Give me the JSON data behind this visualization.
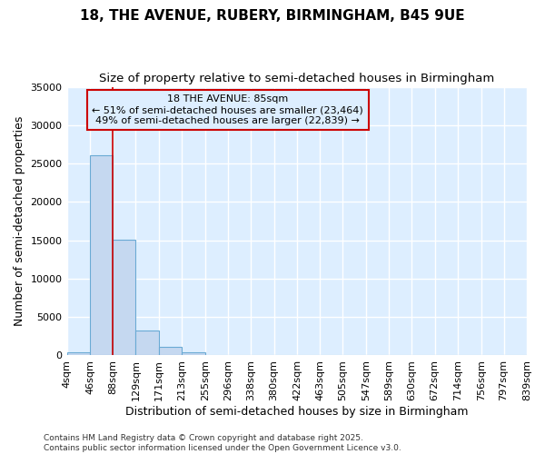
{
  "title": "18, THE AVENUE, RUBERY, BIRMINGHAM, B45 9UE",
  "subtitle": "Size of property relative to semi-detached houses in Birmingham",
  "xlabel": "Distribution of semi-detached houses by size in Birmingham",
  "ylabel": "Number of semi-detached properties",
  "bar_values": [
    400,
    26100,
    15100,
    3300,
    1100,
    400,
    80,
    30,
    10,
    5,
    2,
    1,
    1,
    0,
    0,
    0,
    0,
    0,
    0,
    0
  ],
  "bin_edges": [
    4,
    46,
    88,
    129,
    171,
    213,
    255,
    296,
    338,
    380,
    422,
    463,
    505,
    547,
    589,
    630,
    672,
    714,
    756,
    797,
    839
  ],
  "tick_labels": [
    "4sqm",
    "46sqm",
    "88sqm",
    "129sqm",
    "171sqm",
    "213sqm",
    "255sqm",
    "296sqm",
    "338sqm",
    "380sqm",
    "422sqm",
    "463sqm",
    "505sqm",
    "547sqm",
    "589sqm",
    "630sqm",
    "672sqm",
    "714sqm",
    "756sqm",
    "797sqm",
    "839sqm"
  ],
  "bar_color": "#c5d8f0",
  "bar_edge_color": "#6aaad4",
  "vline_x": 88,
  "vline_color": "#cc0000",
  "annotation_title": "18 THE AVENUE: 85sqm",
  "annotation_line2": "← 51% of semi-detached houses are smaller (23,464)",
  "annotation_line3": "49% of semi-detached houses are larger (22,839) →",
  "annotation_box_color": "#cc0000",
  "ylim": [
    0,
    35000
  ],
  "yticks": [
    0,
    5000,
    10000,
    15000,
    20000,
    25000,
    30000,
    35000
  ],
  "ytick_labels": [
    "0",
    "5000",
    "10000",
    "15000",
    "20000",
    "25000",
    "30000",
    "35000"
  ],
  "plot_bg_color": "#ddeeff",
  "figure_bg_color": "#ffffff",
  "grid_color": "#ffffff",
  "footer_line1": "Contains HM Land Registry data © Crown copyright and database right 2025.",
  "footer_line2": "Contains public sector information licensed under the Open Government Licence v3.0.",
  "title_fontsize": 11,
  "subtitle_fontsize": 9.5,
  "axis_label_fontsize": 9,
  "tick_fontsize": 8,
  "annotation_fontsize": 8,
  "footer_fontsize": 6.5
}
